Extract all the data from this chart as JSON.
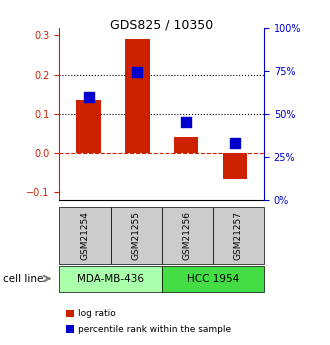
{
  "title": "GDS825 / 10350",
  "samples": [
    "GSM21254",
    "GSM21255",
    "GSM21256",
    "GSM21257"
  ],
  "log_ratio": [
    0.135,
    0.29,
    0.04,
    -0.065
  ],
  "percentile_rank": [
    0.155,
    0.19,
    0.115,
    0.085
  ],
  "percentile_rank_pct": [
    60,
    74,
    45,
    33
  ],
  "bar_color": "#cc2200",
  "dot_color": "#0000cc",
  "ylim": [
    -0.12,
    0.32
  ],
  "y2lim": [
    0,
    100
  ],
  "yticks": [
    -0.1,
    0.0,
    0.1,
    0.2,
    0.3
  ],
  "y2ticks": [
    0,
    25,
    50,
    75,
    100
  ],
  "hlines_dotted": [
    0.1,
    0.2
  ],
  "hline_dashed": 0.0,
  "cell_line_groups": [
    {
      "label": "MDA-MB-436",
      "samples": [
        0,
        1
      ],
      "color": "#aaffaa"
    },
    {
      "label": "HCC 1954",
      "samples": [
        2,
        3
      ],
      "color": "#44dd44"
    }
  ],
  "sample_box_color": "#cccccc",
  "cell_line_label": "cell line",
  "legend_entries": [
    {
      "label": "log ratio",
      "color": "#cc2200"
    },
    {
      "label": "percentile rank within the sample",
      "color": "#0000cc"
    }
  ],
  "bar_width": 0.5,
  "dot_size": 60
}
